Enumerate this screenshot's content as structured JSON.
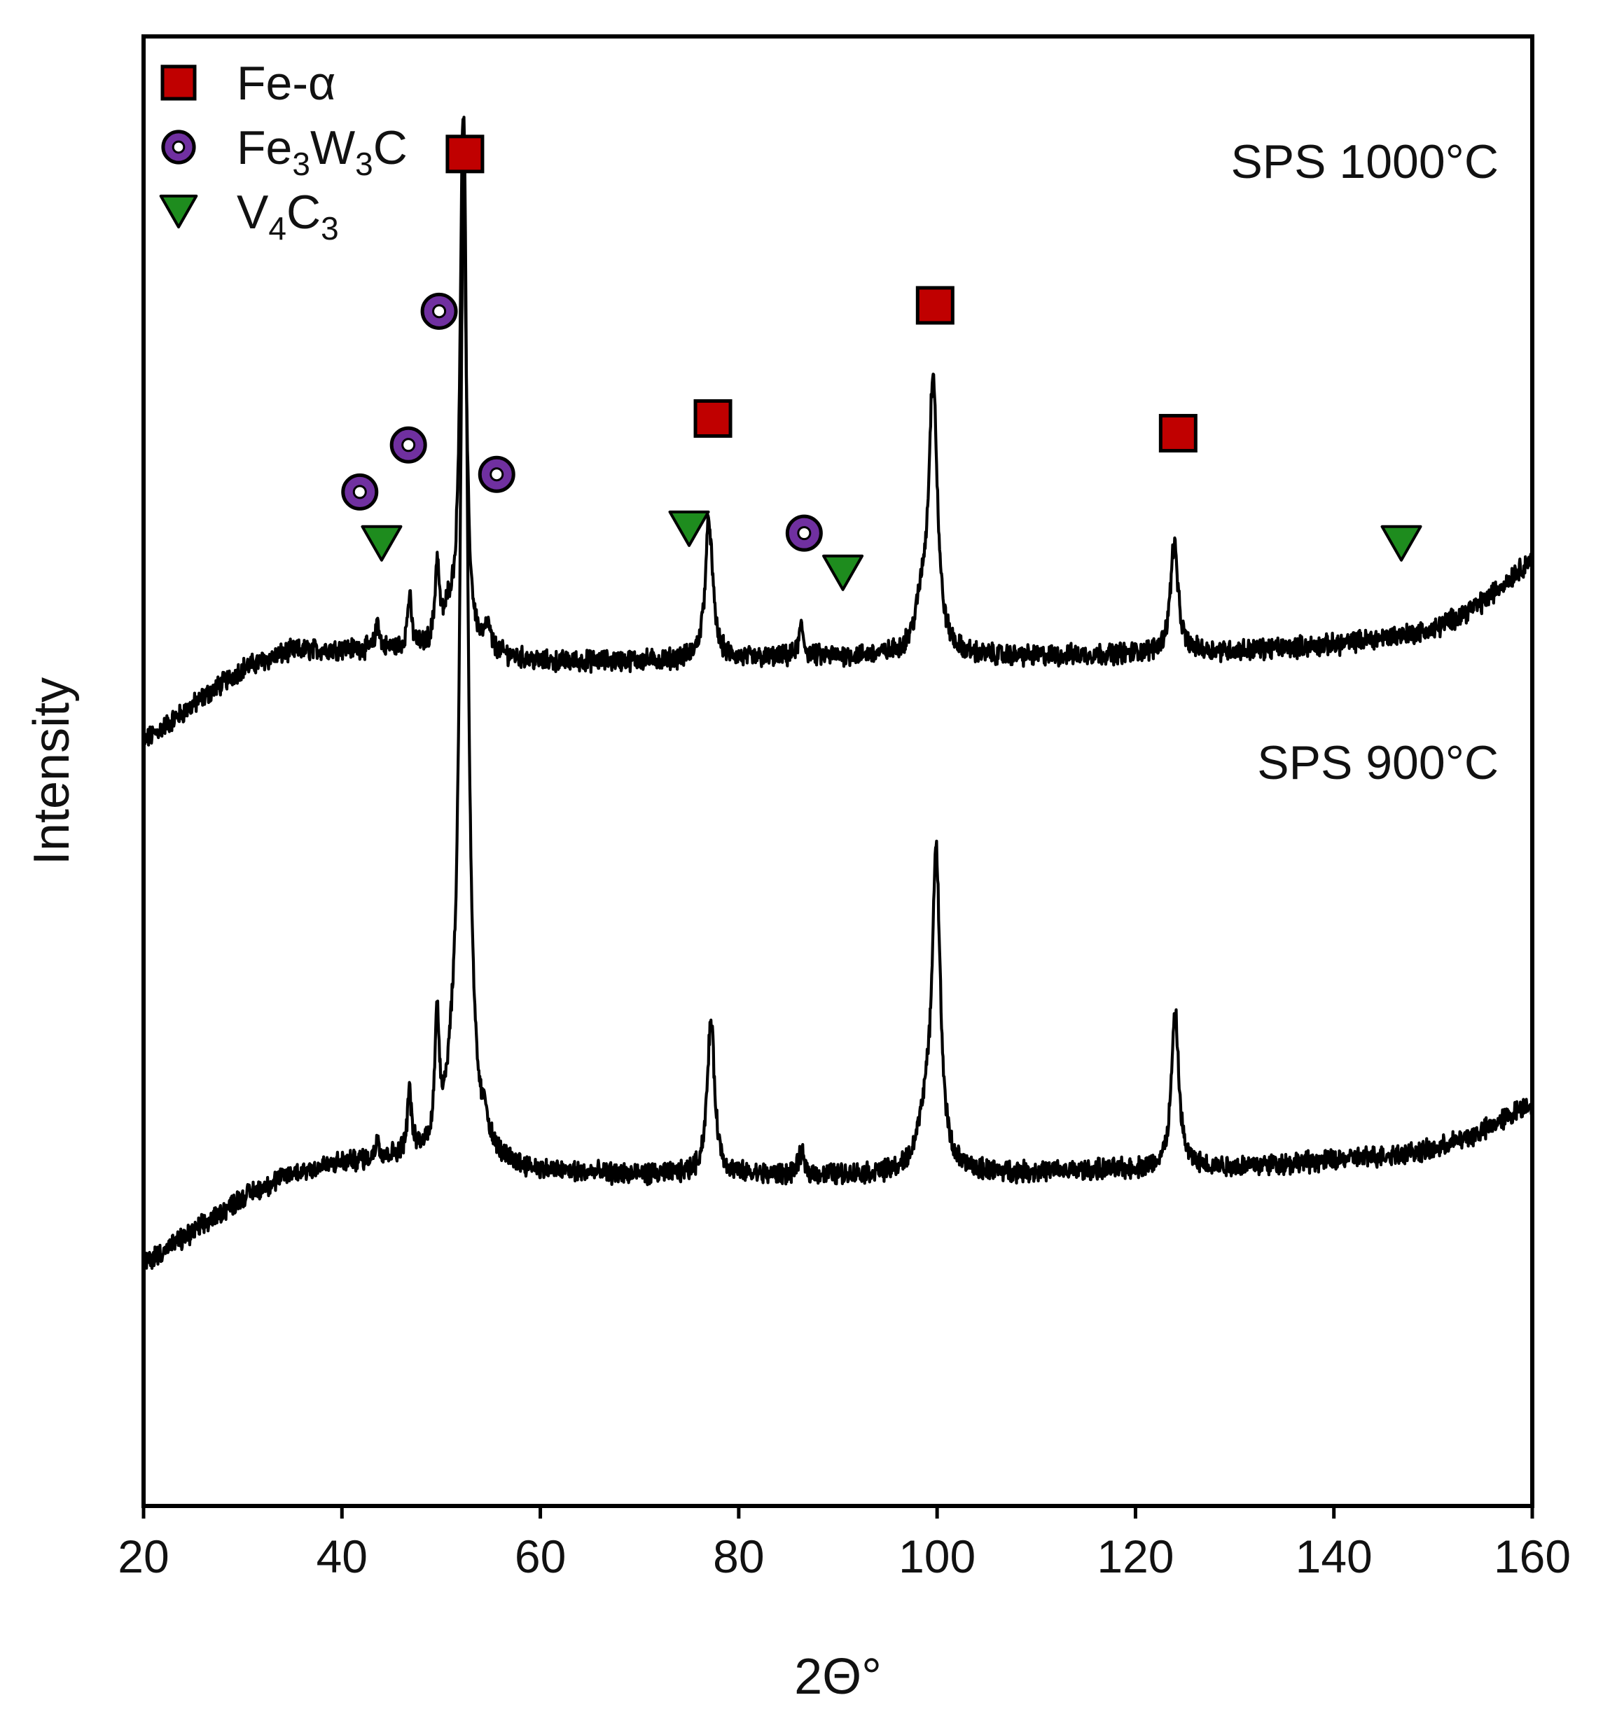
{
  "chart_data": {
    "type": "line",
    "title": "",
    "xlabel": "2Θ°",
    "ylabel": "Intensity",
    "xlim": [
      20,
      160
    ],
    "ylim": [
      0,
      100
    ],
    "xticks": [
      20,
      40,
      60,
      80,
      100,
      120,
      140,
      160
    ],
    "yticks_shown": false,
    "grid": false,
    "legend": {
      "position": "top-left",
      "entries": [
        {
          "id": "fe",
          "label": "Fe-α",
          "marker": "square",
          "color": "#c00000",
          "parts": [
            {
              "t": "Fe-α"
            }
          ]
        },
        {
          "id": "fwc",
          "label": "Fe3W3C",
          "marker": "ring",
          "color": "#7030a0",
          "parts": [
            {
              "t": "Fe"
            },
            {
              "t": "3",
              "sub": true
            },
            {
              "t": "W"
            },
            {
              "t": "3",
              "sub": true
            },
            {
              "t": "C"
            }
          ]
        },
        {
          "id": "vc",
          "label": "V4C3",
          "marker": "triangle-down",
          "color": "#1e8c1e",
          "parts": [
            {
              "t": "V"
            },
            {
              "t": "4",
              "sub": true
            },
            {
              "t": "C"
            },
            {
              "t": "3",
              "sub": true
            }
          ]
        }
      ]
    },
    "series": [
      {
        "name": "SPS 1000°C",
        "label_position": "upper-right",
        "color": "#000000",
        "background": [
          [
            20,
            52
          ],
          [
            25,
            54.5
          ],
          [
            30,
            57
          ],
          [
            35,
            58.2
          ],
          [
            40,
            58.3
          ],
          [
            50,
            58.2
          ],
          [
            55,
            57.9
          ],
          [
            60,
            57.4
          ],
          [
            70,
            57.5
          ],
          [
            80,
            57.6
          ],
          [
            90,
            57.8
          ],
          [
            100,
            57.8
          ],
          [
            110,
            57.8
          ],
          [
            120,
            58.0
          ],
          [
            130,
            58.2
          ],
          [
            140,
            58.6
          ],
          [
            150,
            59.6
          ],
          [
            155,
            61.5
          ],
          [
            160,
            64.5
          ]
        ],
        "noise": 0.6,
        "peaks": [
          {
            "x": 43.6,
            "h": 2.0,
            "w": 0.2
          },
          {
            "x": 46.8,
            "h": 3.5,
            "w": 0.25
          },
          {
            "x": 49.6,
            "h": 5.5,
            "w": 0.25
          },
          {
            "x": 50.8,
            "h": 2.0,
            "w": 0.6
          },
          {
            "x": 52.2,
            "h": 36,
            "w": 0.35
          },
          {
            "x": 54.7,
            "h": 1.5,
            "w": 0.3
          },
          {
            "x": 77.0,
            "h": 9.5,
            "w": 0.45
          },
          {
            "x": 86.3,
            "h": 2.0,
            "w": 0.3
          },
          {
            "x": 99.6,
            "h": 18.5,
            "w": 0.5
          },
          {
            "x": 98.5,
            "h": 3.0,
            "w": 0.8
          },
          {
            "x": 123.9,
            "h": 7.5,
            "w": 0.45
          }
        ]
      },
      {
        "name": "SPS 900°C",
        "label_position": "upper-right",
        "color": "#000000",
        "background": [
          [
            20,
            16.5
          ],
          [
            25,
            18.6
          ],
          [
            30,
            21
          ],
          [
            35,
            22.6
          ],
          [
            40,
            23.3
          ],
          [
            45,
            23.6
          ],
          [
            50,
            23.7
          ],
          [
            55,
            23.2
          ],
          [
            60,
            22.7
          ],
          [
            70,
            22.5
          ],
          [
            80,
            22.5
          ],
          [
            90,
            22.5
          ],
          [
            100,
            22.6
          ],
          [
            110,
            22.7
          ],
          [
            120,
            22.9
          ],
          [
            130,
            23.1
          ],
          [
            140,
            23.5
          ],
          [
            150,
            24.2
          ],
          [
            155,
            25.5
          ],
          [
            160,
            27.5
          ]
        ],
        "noise": 0.6,
        "peaks": [
          {
            "x": 43.6,
            "h": 1.5,
            "w": 0.2
          },
          {
            "x": 46.8,
            "h": 4.2,
            "w": 0.25
          },
          {
            "x": 49.6,
            "h": 8.5,
            "w": 0.25
          },
          {
            "x": 51.0,
            "h": 2.5,
            "w": 0.6
          },
          {
            "x": 52.3,
            "h": 70,
            "w": 0.45
          },
          {
            "x": 54.5,
            "h": 1.5,
            "w": 0.3
          },
          {
            "x": 77.2,
            "h": 10.5,
            "w": 0.45
          },
          {
            "x": 86.3,
            "h": 1.5,
            "w": 0.3
          },
          {
            "x": 99.9,
            "h": 21.5,
            "w": 0.5
          },
          {
            "x": 98.7,
            "h": 3.0,
            "w": 0.8
          },
          {
            "x": 124.0,
            "h": 10.5,
            "w": 0.45
          }
        ]
      }
    ],
    "phase_markers": [
      {
        "phase": "Fe-α",
        "shape": "square",
        "x": 52.4,
        "y": 92
      },
      {
        "phase": "Fe-α",
        "shape": "square",
        "x": 77.4,
        "y": 74
      },
      {
        "phase": "Fe-α",
        "shape": "square",
        "x": 99.8,
        "y": 81.7
      },
      {
        "phase": "Fe-α",
        "shape": "square",
        "x": 124.3,
        "y": 73
      },
      {
        "phase": "Fe3W3C",
        "shape": "ring",
        "x": 41.8,
        "y": 69
      },
      {
        "phase": "Fe3W3C",
        "shape": "ring",
        "x": 46.7,
        "y": 72.2
      },
      {
        "phase": "Fe3W3C",
        "shape": "ring",
        "x": 49.8,
        "y": 81.3
      },
      {
        "phase": "Fe3W3C",
        "shape": "ring",
        "x": 55.6,
        "y": 70.2
      },
      {
        "phase": "Fe3W3C",
        "shape": "ring",
        "x": 86.6,
        "y": 66.2
      },
      {
        "phase": "V4C3",
        "shape": "triangle-down",
        "x": 44.0,
        "y": 65.5
      },
      {
        "phase": "V4C3",
        "shape": "triangle-down",
        "x": 75.0,
        "y": 66.5
      },
      {
        "phase": "V4C3",
        "shape": "triangle-down",
        "x": 90.5,
        "y": 63.5
      },
      {
        "phase": "V4C3",
        "shape": "triangle-down",
        "x": 146.8,
        "y": 65.5
      }
    ]
  }
}
